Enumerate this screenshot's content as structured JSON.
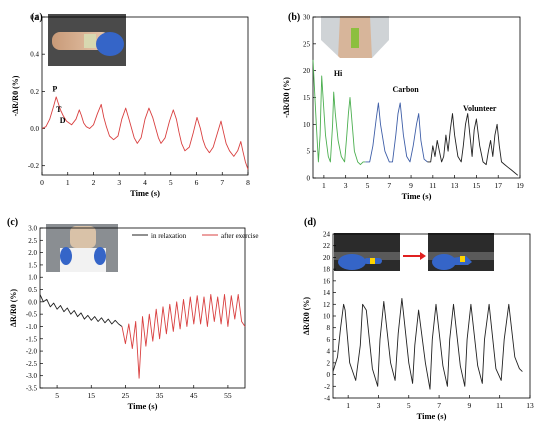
{
  "chart_data": [
    {
      "type": "line",
      "panel_label": "(a)",
      "xlabel": "Time (s)",
      "ylabel": "-ΔR/R0 (%)",
      "xlim": [
        0,
        8
      ],
      "ylim": [
        -0.25,
        0.6
      ],
      "xticks": [
        0,
        1,
        2,
        3,
        4,
        5,
        6,
        7,
        8
      ],
      "yticks": [
        -0.2,
        0.0,
        0.2,
        0.4,
        0.6
      ],
      "ytick_labels": [
        "-0.2",
        "0.0",
        "0.2",
        "0.4",
        "0.6"
      ],
      "annotations": [
        {
          "text": "P",
          "x": 0.5,
          "y": 0.2
        },
        {
          "text": "T",
          "x": 0.65,
          "y": 0.09
        },
        {
          "text": "D",
          "x": 0.8,
          "y": 0.03
        }
      ],
      "inset": "photo of sensor on wrist",
      "series": [
        {
          "color": "#d94040",
          "x": [
            0,
            0.15,
            0.3,
            0.45,
            0.55,
            0.62,
            0.72,
            0.82,
            0.95,
            1.15,
            1.32,
            1.45,
            1.53,
            1.62,
            1.72,
            1.85,
            2.0,
            2.15,
            2.3,
            2.4,
            2.5,
            2.62,
            2.78,
            2.95,
            3.1,
            3.25,
            3.38,
            3.48,
            3.58,
            3.7,
            3.85,
            4.0,
            4.15,
            4.3,
            4.42,
            4.52,
            4.62,
            4.78,
            4.95,
            5.1,
            5.22,
            5.32,
            5.42,
            5.55,
            5.72,
            5.88,
            6.02,
            6.15,
            6.25,
            6.35,
            6.5,
            6.65,
            6.8,
            6.95,
            7.05,
            7.15,
            7.28,
            7.45,
            7.6,
            7.72,
            7.8,
            7.9,
            8.0
          ],
          "y": [
            0.0,
            0.01,
            0.05,
            0.12,
            0.17,
            0.14,
            0.1,
            0.07,
            0.04,
            0.02,
            0.05,
            0.1,
            0.07,
            0.03,
            0.01,
            0.0,
            0.02,
            0.08,
            0.13,
            0.06,
            0.01,
            -0.04,
            -0.06,
            -0.04,
            0.05,
            0.11,
            0.05,
            0.0,
            -0.05,
            -0.08,
            -0.05,
            0.05,
            0.11,
            0.06,
            0.0,
            -0.05,
            -0.08,
            -0.05,
            0.04,
            0.1,
            0.05,
            -0.02,
            -0.08,
            -0.12,
            -0.1,
            -0.02,
            0.06,
            0.0,
            -0.06,
            -0.1,
            -0.13,
            -0.1,
            -0.03,
            0.04,
            -0.02,
            -0.08,
            -0.12,
            -0.15,
            -0.12,
            -0.07,
            -0.12,
            -0.18,
            -0.22
          ]
        }
      ]
    },
    {
      "type": "line",
      "panel_label": "(b)",
      "xlabel": "Time (s)",
      "ylabel": "-ΔR/R0 (%)",
      "xlim": [
        0,
        19
      ],
      "ylim": [
        0,
        30
      ],
      "xticks": [
        1,
        3,
        5,
        7,
        9,
        11,
        13,
        15,
        17,
        19
      ],
      "yticks": [
        0,
        5,
        10,
        15,
        20,
        25,
        30
      ],
      "annotations": [
        {
          "text": "Hi",
          "x": 2.3,
          "y": 19
        },
        {
          "text": "Carbon",
          "x": 8.5,
          "y": 16
        },
        {
          "text": "Volunteer",
          "x": 15.3,
          "y": 12.5
        }
      ],
      "inset": "photo of sensor on throat",
      "series": [
        {
          "color": "#4caf50",
          "x": [
            0,
            0.3,
            0.5,
            0.65,
            0.8,
            0.95,
            1.15,
            1.4,
            1.6,
            1.8,
            1.9,
            2.05,
            2.3,
            2.6,
            2.9,
            3.1,
            3.25,
            3.4,
            3.6,
            3.8,
            4.1,
            4.35,
            4.6,
            4.8
          ],
          "y": [
            22,
            10,
            3,
            8,
            19,
            14,
            8,
            4,
            3,
            10,
            16,
            12,
            7,
            4,
            3,
            8,
            12,
            15,
            10,
            5,
            3,
            2.5,
            3,
            3
          ]
        },
        {
          "color": "#3f5fa8",
          "x": [
            4.8,
            5.2,
            5.5,
            5.8,
            6.0,
            6.2,
            6.6,
            7.0,
            7.3,
            7.6,
            7.8,
            8.0,
            8.3,
            8.6,
            8.9,
            9.2,
            9.5,
            9.7,
            9.9,
            10.2,
            10.5
          ],
          "y": [
            3,
            3,
            6,
            11,
            14,
            10,
            5,
            3,
            3,
            8,
            12,
            14,
            8,
            4,
            3,
            6,
            10,
            12,
            7,
            3.5,
            3
          ]
        },
        {
          "color": "#222222",
          "x": [
            10.5,
            10.8,
            11.0,
            11.2,
            11.4,
            11.6,
            11.8,
            12.0,
            12.2,
            12.4,
            12.6,
            12.8,
            13.0,
            13.3,
            13.6,
            13.8,
            14.0,
            14.2,
            14.4,
            14.6,
            14.8,
            15.0,
            15.3,
            15.6,
            15.9,
            16.1,
            16.3,
            16.5,
            16.7,
            16.9,
            17.1,
            17.3,
            17.6,
            17.9,
            18.2,
            18.5,
            18.8
          ],
          "y": [
            3,
            3,
            6,
            4,
            7,
            5,
            3,
            4,
            8,
            5,
            9,
            12,
            8,
            4,
            3,
            6,
            10,
            12,
            8,
            4,
            9,
            11,
            6,
            3,
            2.5,
            5,
            7,
            4,
            8,
            10,
            6,
            3,
            2.5,
            2,
            1.5,
            1,
            0.5
          ]
        }
      ]
    },
    {
      "type": "line",
      "panel_label": "(c)",
      "xlabel": "Time (s)",
      "ylabel": "ΔR/R0 (%)",
      "xlim": [
        0,
        60
      ],
      "ylim": [
        -3.5,
        3.0
      ],
      "xticks": [
        5,
        15,
        25,
        35,
        45,
        55
      ],
      "yticks": [
        -3.5,
        -3.0,
        -2.5,
        -2.0,
        -1.5,
        -1.0,
        -0.5,
        0.0,
        0.5,
        1.0,
        1.5,
        2.0,
        2.5,
        3.0
      ],
      "ytick_labels": [
        "-3.5",
        "-3.0",
        "-2.5",
        "-2.0",
        "-1.5",
        "-1.0",
        "-0.5",
        "0.0",
        "0.5",
        "1.0",
        "1.5",
        "2.0",
        "2.5",
        "3.0"
      ],
      "legend": "top-right",
      "inset": "photo of volunteer wearing sensor",
      "series": [
        {
          "name": "in relaxation",
          "color": "#222222",
          "x": [
            0,
            1,
            2,
            3,
            4,
            5,
            6,
            7,
            8,
            9,
            10,
            11,
            12,
            13,
            14,
            15,
            16,
            17,
            18,
            19,
            20,
            21,
            22,
            23,
            24
          ],
          "y": [
            0.3,
            0.0,
            0.1,
            -0.2,
            -0.05,
            -0.3,
            -0.15,
            -0.4,
            -0.25,
            -0.5,
            -0.35,
            -0.6,
            -0.45,
            -0.7,
            -0.55,
            -0.75,
            -0.6,
            -0.8,
            -0.65,
            -0.85,
            -0.7,
            -0.9,
            -0.75,
            -0.9,
            -1.0
          ]
        },
        {
          "name": "after exercise",
          "color": "#d94040",
          "x": [
            24,
            25,
            26,
            27,
            28,
            29,
            30,
            31,
            32,
            33,
            34,
            35,
            36,
            37,
            38,
            39,
            40,
            41,
            42,
            43,
            44,
            45,
            46,
            47,
            48,
            49,
            50,
            51,
            52,
            53,
            54,
            55,
            56,
            57,
            58,
            59,
            60
          ],
          "y": [
            -1.0,
            -1.7,
            -0.9,
            -1.9,
            -0.8,
            -3.1,
            -0.6,
            -1.8,
            -0.5,
            -1.6,
            -0.3,
            -1.5,
            -0.2,
            -1.3,
            -0.1,
            -1.2,
            0.0,
            -1.1,
            0.1,
            -1.0,
            0.2,
            -0.9,
            0.25,
            -0.9,
            0.2,
            -1.0,
            0.3,
            -0.8,
            0.2,
            -0.9,
            0.3,
            -1.0,
            0.25,
            -0.7,
            0.3,
            -0.8,
            -1.0
          ]
        }
      ]
    },
    {
      "type": "line",
      "panel_label": "(d)",
      "xlabel": "Time (s)",
      "ylabel": "ΔR/R0 (%)",
      "xlim": [
        0,
        13
      ],
      "ylim": [
        -4,
        24
      ],
      "xticks": [
        1,
        3,
        5,
        7,
        9,
        11,
        13
      ],
      "yticks": [
        -4,
        -2,
        0,
        2,
        4,
        6,
        8,
        10,
        12,
        14,
        16,
        18,
        20,
        22,
        24
      ],
      "inset": "photos of finger bending on sensor",
      "series": [
        {
          "color": "#222222",
          "x": [
            0.0,
            0.3,
            0.5,
            0.7,
            0.8,
            1.1,
            1.5,
            1.8,
            1.95,
            2.2,
            2.6,
            2.95,
            3.1,
            3.35,
            3.8,
            4.1,
            4.3,
            4.55,
            5.0,
            5.25,
            5.4,
            5.65,
            6.1,
            6.4,
            6.55,
            6.8,
            7.25,
            7.55,
            7.7,
            7.95,
            8.4,
            8.7,
            8.85,
            9.1,
            9.55,
            9.85,
            10.0,
            10.3,
            10.75,
            11.1,
            11.3,
            11.6,
            12.0,
            12.3,
            12.5
          ],
          "y": [
            0.5,
            3,
            8,
            12,
            11,
            2,
            -1,
            5,
            12,
            11,
            1,
            -2,
            6,
            12.5,
            2,
            -1,
            7,
            13,
            2,
            -1.5,
            5,
            11,
            2,
            -2.5,
            6,
            12,
            1.5,
            -2,
            6,
            12,
            1.5,
            -2,
            6,
            12,
            1.5,
            -1.5,
            6,
            12,
            1,
            -1,
            6,
            12,
            3,
            1,
            0.5
          ]
        }
      ]
    }
  ]
}
